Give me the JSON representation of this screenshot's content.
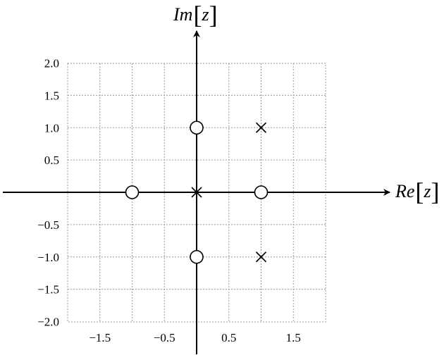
{
  "chart_data": {
    "type": "scatter",
    "title": "",
    "xlabel": {
      "prefix": "Re",
      "variable": "z"
    },
    "ylabel": {
      "prefix": "Im",
      "variable": "z"
    },
    "xlim": [
      -2.0,
      2.0
    ],
    "ylim": [
      -2.0,
      2.0
    ],
    "x_tick_labels": [
      {
        "value": -1.5,
        "label": "−1.5"
      },
      {
        "value": -0.5,
        "label": "−0.5"
      },
      {
        "value": 0.5,
        "label": "0.5"
      },
      {
        "value": 1.5,
        "label": "1.5"
      }
    ],
    "y_tick_labels": [
      {
        "value": 2.0,
        "label": "2.0"
      },
      {
        "value": 1.5,
        "label": "1.5"
      },
      {
        "value": 1.0,
        "label": "1.0"
      },
      {
        "value": 0.5,
        "label": "0.5"
      },
      {
        "value": -0.5,
        "label": "−0.5"
      },
      {
        "value": -1.0,
        "label": "−1.0"
      },
      {
        "value": -1.5,
        "label": "−1.5"
      },
      {
        "value": -2.0,
        "label": "−2.0"
      }
    ],
    "grid": true,
    "grid_step": 0.5,
    "series": [
      {
        "marker": "circle",
        "points": [
          [
            -1,
            0
          ],
          [
            1,
            0
          ],
          [
            0,
            1
          ],
          [
            0,
            -1
          ]
        ]
      },
      {
        "marker": "cross",
        "points": [
          [
            0,
            0
          ],
          [
            1,
            1
          ],
          [
            1,
            -1
          ]
        ]
      }
    ]
  }
}
